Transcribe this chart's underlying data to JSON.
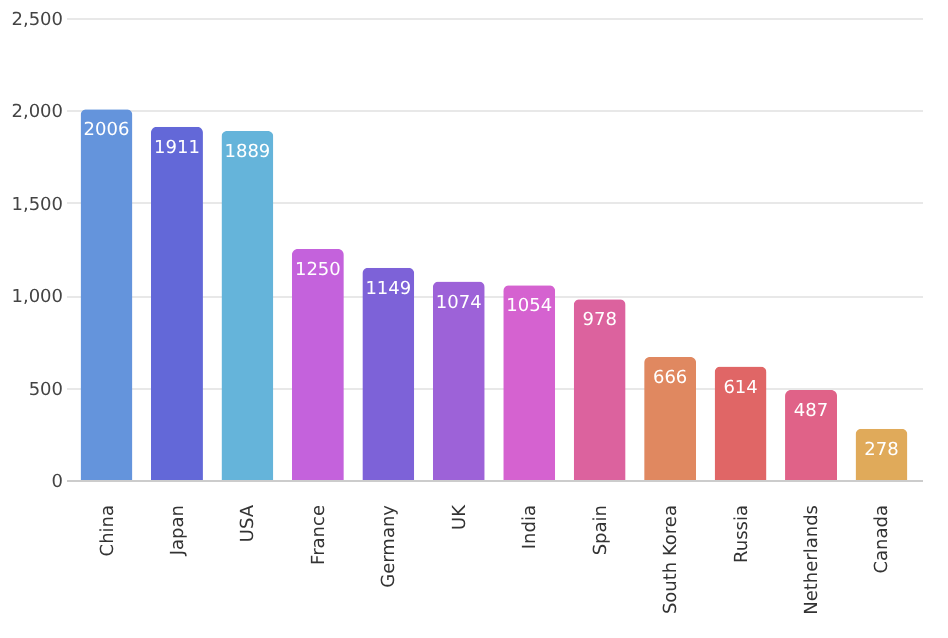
{
  "chart_data": {
    "type": "bar",
    "categories": [
      "China",
      "Japan",
      "USA",
      "France",
      "Germany",
      "UK",
      "India",
      "Spain",
      "South Korea",
      "Russia",
      "Netherlands",
      "Canada"
    ],
    "values": [
      2006,
      1911,
      1889,
      1250,
      1149,
      1074,
      1054,
      978,
      666,
      614,
      487,
      278
    ],
    "colors": [
      "#6494dc",
      "#6368d8",
      "#65b4da",
      "#c462dc",
      "#7d62d8",
      "#9d62d8",
      "#d562d0",
      "#dc629e",
      "#e08860",
      "#e06666",
      "#e06288",
      "#e0aa5a"
    ],
    "ylim": [
      0,
      2500
    ],
    "yticks": [
      {
        "value": 0,
        "label": "0"
      },
      {
        "value": 500,
        "label": "500"
      },
      {
        "value": 1000,
        "label": "1,000"
      },
      {
        "value": 1500,
        "label": "1,500"
      },
      {
        "value": 2000,
        "label": "2,000"
      },
      {
        "value": 2500,
        "label": "2,500"
      }
    ],
    "grid": "y",
    "data_labels": true
  }
}
